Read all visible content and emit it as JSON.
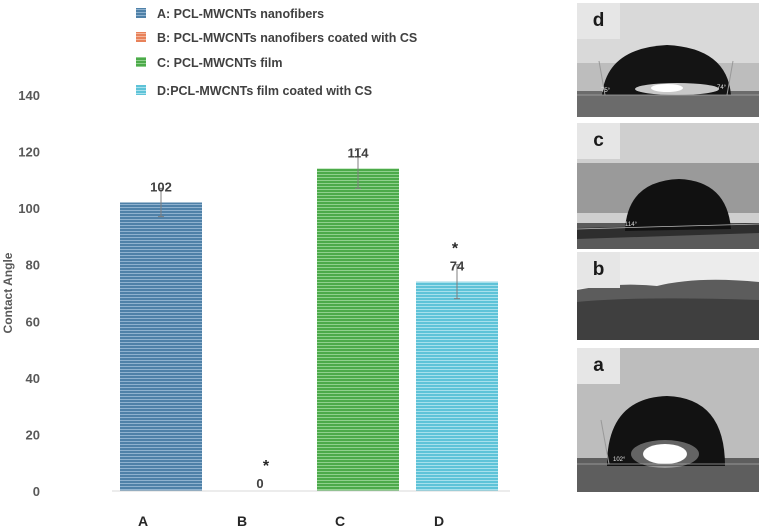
{
  "chart_data": {
    "type": "bar",
    "categories": [
      "A",
      "B",
      "C",
      "D"
    ],
    "values": [
      102,
      0,
      114,
      74
    ],
    "errors": [
      5,
      0,
      7,
      6
    ],
    "data_labels": [
      "102",
      "0",
      "114",
      "74"
    ],
    "significance": [
      "",
      "*",
      "",
      "*"
    ],
    "ylabel": "Contact Angle",
    "xlabel": "",
    "ylim": [
      0,
      140
    ],
    "yticks": [
      0,
      20,
      40,
      60,
      80,
      100,
      120,
      140
    ],
    "grid": false,
    "legend_position": "top",
    "legend": [
      {
        "label": "A: PCL-MWCNTs nanofibers",
        "color": "#4f81a8"
      },
      {
        "label": "B: PCL-MWCNTs nanofibers coated with CS",
        "color": "#e8825a"
      },
      {
        "label": "C: PCL-MWCNTs film",
        "color": "#4caa4a"
      },
      {
        "label": "D:PCL-MWCNTs film coated with CS",
        "color": "#5ec3d8"
      }
    ],
    "colors": [
      "#4f81a8",
      "#e8825a",
      "#4caa4a",
      "#5ec3d8"
    ]
  },
  "photo_panels": [
    {
      "label": "d",
      "angles": [
        "75°",
        "74°"
      ]
    },
    {
      "label": "c",
      "angles": [
        "114°"
      ]
    },
    {
      "label": "b",
      "angles": []
    },
    {
      "label": "a",
      "angles": [
        "102°"
      ]
    }
  ]
}
